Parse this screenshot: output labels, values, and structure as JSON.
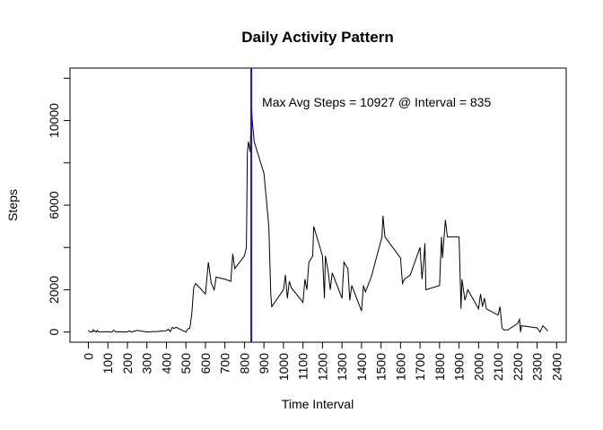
{
  "chart_data": {
    "type": "line",
    "title": "Daily Activity Pattern",
    "xlabel": "Time Interval",
    "ylabel": "Steps",
    "annotation": "Max Avg Steps = 10927  @ Interval = 835",
    "vline": 835,
    "vline_color": "#1a1acd",
    "x": [
      0,
      5,
      10,
      15,
      20,
      25,
      30,
      35,
      40,
      45,
      50,
      55,
      100,
      110,
      120,
      130,
      140,
      150,
      200,
      210,
      220,
      250,
      300,
      320,
      330,
      340,
      400,
      410,
      420,
      430,
      440,
      450,
      500,
      510,
      520,
      530,
      540,
      550,
      600,
      615,
      630,
      645,
      655,
      700,
      730,
      740,
      750,
      800,
      810,
      815,
      820,
      830,
      835,
      840,
      850,
      900,
      915,
      925,
      935,
      940,
      1000,
      1010,
      1020,
      1030,
      1040,
      1100,
      1110,
      1120,
      1130,
      1150,
      1155,
      1200,
      1210,
      1215,
      1230,
      1240,
      1250,
      1300,
      1310,
      1330,
      1340,
      1350,
      1400,
      1410,
      1420,
      1450,
      1505,
      1510,
      1520,
      1600,
      1610,
      1620,
      1650,
      1700,
      1710,
      1720,
      1725,
      1730,
      1800,
      1810,
      1815,
      1830,
      1840,
      1900,
      1910,
      1915,
      1930,
      1945,
      2000,
      2010,
      2020,
      2030,
      2040,
      2100,
      2110,
      2120,
      2130,
      2150,
      2200,
      2210,
      2215,
      2220,
      2300,
      2315,
      2330,
      2350,
      2355
    ],
    "series": [
      {
        "name": "Steps",
        "color": "#000000",
        "values": [
          91,
          18,
          7,
          8,
          4,
          111,
          28,
          46,
          0,
          78,
          16,
          7,
          17,
          8,
          0,
          96,
          9,
          14,
          0,
          60,
          0,
          82,
          0,
          11,
          27,
          19,
          64,
          134,
          18,
          216,
          173,
          227,
          0,
          160,
          177,
          850,
          2100,
          2300,
          1800,
          3300,
          2300,
          2000,
          2600,
          2500,
          2400,
          3700,
          3000,
          3600,
          4000,
          8500,
          9000,
          8500,
          10927,
          10000,
          9000,
          7500,
          6000,
          5000,
          1800,
          1200,
          2000,
          2700,
          1600,
          2400,
          2100,
          1400,
          2500,
          2000,
          3300,
          3600,
          5000,
          3600,
          1600,
          3600,
          2800,
          2000,
          2800,
          1600,
          3300,
          3000,
          1500,
          2200,
          1000,
          2200,
          1900,
          2600,
          4500,
          5500,
          4500,
          3500,
          2300,
          2500,
          2700,
          4000,
          2500,
          3500,
          4200,
          2000,
          2200,
          4500,
          3500,
          5300,
          4500,
          4500,
          1100,
          2500,
          1500,
          2000,
          1100,
          1800,
          1200,
          1600,
          1100,
          800,
          1200,
          200,
          100,
          100,
          400,
          600,
          0,
          300,
          200,
          0,
          300,
          100,
          50
        ]
      }
    ],
    "xlim": [
      -94.2,
      2449.2
    ],
    "ylim": [
      -480,
      12480
    ],
    "xticks": [
      0,
      100,
      200,
      300,
      400,
      500,
      600,
      700,
      800,
      900,
      1000,
      1100,
      1200,
      1300,
      1400,
      1500,
      1600,
      1700,
      1800,
      1900,
      2000,
      2100,
      2200,
      2300,
      2400
    ],
    "yticks": [
      0,
      2000,
      6000,
      10000
    ],
    "yminor_ticks": [
      4000,
      8000,
      12000
    ]
  }
}
